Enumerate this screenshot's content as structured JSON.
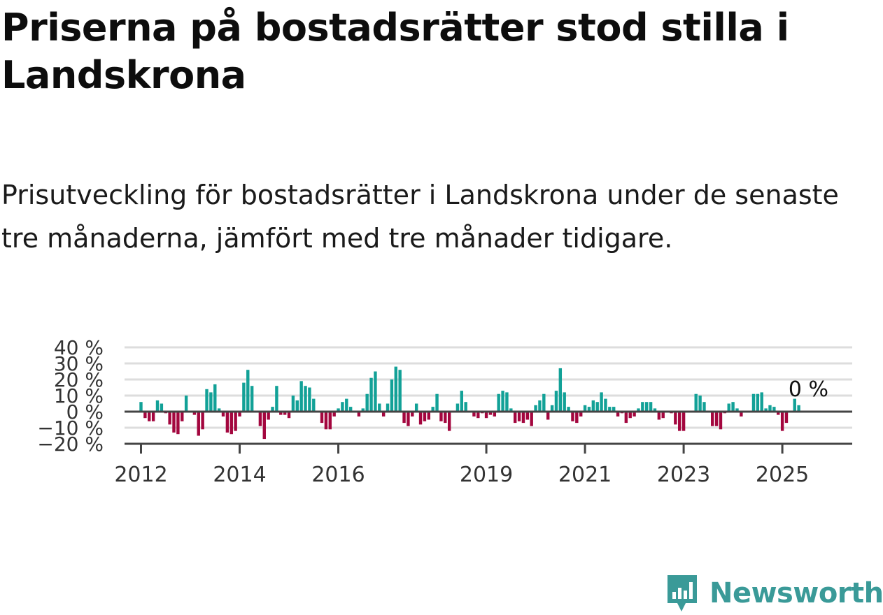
{
  "title": "Priserna på bostadsrätter stod stilla i Landskrona",
  "subtitle": "Prisutveckling för bostadsrätter i Landskrona under de senaste tre månaderna, jämfört med tre månader tidigare.",
  "brand": {
    "name": "Newsworthy",
    "color": "#3a9a98"
  },
  "colors": {
    "positive": "#12a197",
    "negative": "#a3063e",
    "grid": "#dddddd",
    "axis": "#444444"
  },
  "chart_data": {
    "type": "bar",
    "title": "Priserna på bostadsrätter stod stilla i Landskrona",
    "xlabel": "",
    "ylabel": "",
    "unit": "%",
    "ylim": [
      -20,
      40
    ],
    "yticks": [
      {
        "value": 40,
        "label": "40 %"
      },
      {
        "value": 30,
        "label": "30 %"
      },
      {
        "value": 20,
        "label": "20 %"
      },
      {
        "value": 10,
        "label": "10 %"
      },
      {
        "value": 0,
        "label": "0 %"
      },
      {
        "value": -10,
        "label": "−10 %"
      },
      {
        "value": -20,
        "label": "−20 %"
      }
    ],
    "xlim": [
      "2011-09",
      "2026-06"
    ],
    "xticks": [
      {
        "date": "2012-01",
        "label": "2012"
      },
      {
        "date": "2014-01",
        "label": "2014"
      },
      {
        "date": "2016-01",
        "label": "2016"
      },
      {
        "date": "2019-01",
        "label": "2019"
      },
      {
        "date": "2021-01",
        "label": "2021"
      },
      {
        "date": "2023-01",
        "label": "2023"
      },
      {
        "date": "2025-01",
        "label": "2025"
      }
    ],
    "grid": true,
    "start": "2012-01",
    "values": [
      6,
      -4,
      -6,
      -6,
      7,
      5,
      -1,
      -8,
      -13,
      -14,
      -6,
      10,
      0,
      -2,
      -15,
      -11,
      14,
      12,
      17,
      2,
      -3,
      -13,
      -14,
      -12,
      -3,
      18,
      26,
      16,
      0,
      -9,
      -17,
      -5,
      3,
      16,
      -2,
      -2,
      -4,
      10,
      7,
      19,
      16,
      15,
      8,
      0,
      -7,
      -11,
      -11,
      -3,
      2,
      6,
      8,
      3,
      0,
      -3,
      2,
      11,
      21,
      25,
      5,
      -3,
      5,
      20,
      28,
      26,
      -7,
      -9,
      -3,
      5,
      -8,
      -6,
      -5,
      3,
      11,
      -6,
      -7,
      -12,
      0,
      5,
      13,
      6,
      0,
      -3,
      -4,
      -1,
      -4,
      -2,
      -3,
      11,
      13,
      12,
      2,
      -7,
      -6,
      -7,
      -5,
      -9,
      4,
      7,
      11,
      -5,
      4,
      13,
      27,
      12,
      3,
      -6,
      -7,
      -3,
      4,
      3,
      7,
      6,
      12,
      8,
      3,
      3,
      -3,
      -1,
      -7,
      -4,
      -3,
      2,
      6,
      6,
      6,
      2,
      -5,
      -4,
      0,
      -1,
      -8,
      -12,
      -12,
      0,
      0,
      11,
      10,
      6,
      0,
      -9,
      -9,
      -11,
      -1,
      5,
      6,
      2,
      -3,
      0,
      0,
      11,
      11,
      12,
      2,
      4,
      3,
      -2,
      -12,
      -7,
      0,
      8,
      4,
      0
    ],
    "annotations": [
      {
        "date": "2025-06",
        "label": "0 %"
      }
    ]
  }
}
